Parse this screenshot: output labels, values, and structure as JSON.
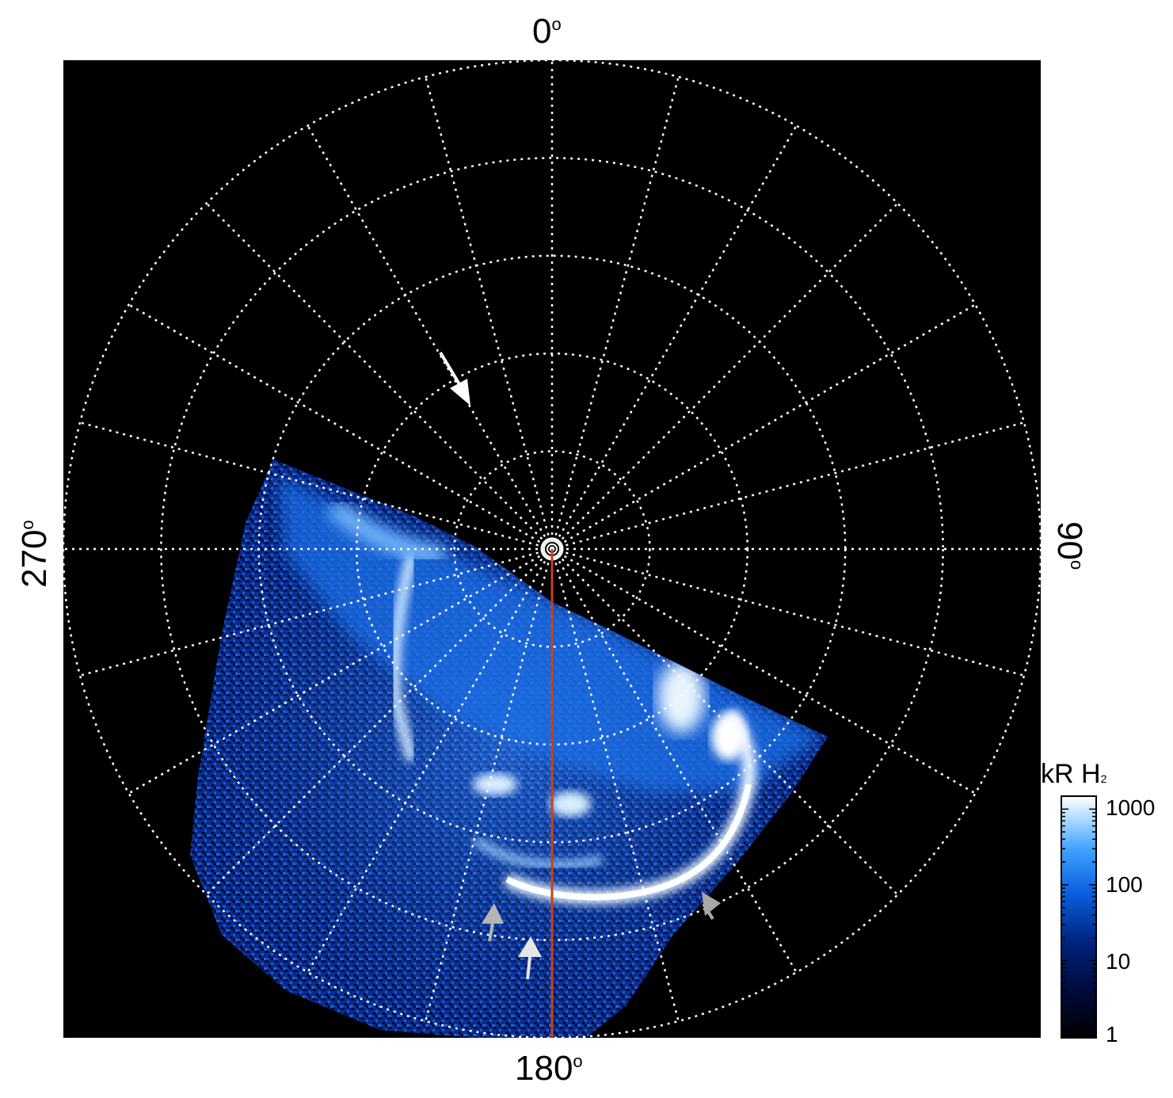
{
  "map": {
    "labels": {
      "top": "0",
      "right": "90",
      "bottom": "180",
      "left": "270",
      "degree_symbol": "o"
    },
    "grid": {
      "style": "dotted",
      "color": "#ffffff",
      "latitude_rings": 5,
      "longitude_spokes": 24
    },
    "meridian_line_color": "#c0401f",
    "background": "#000000",
    "arrows": [
      {
        "color": "#ffffff",
        "name": "white-arrow-upper"
      },
      {
        "color": "#a0a0a0",
        "name": "gray-arrow-right"
      },
      {
        "color": "#b0b0b0",
        "name": "gray-arrow-lower-left"
      },
      {
        "color": "#e0e0e0",
        "name": "white-arrow-lower"
      }
    ]
  },
  "colorbar": {
    "title": "kR H",
    "title_subscript": "2",
    "ticks": [
      "1000",
      "100",
      "10",
      "1"
    ],
    "colors": [
      "#000000",
      "#001a66",
      "#0a4fd0",
      "#3a9cff",
      "#bfe2ff",
      "#ffffff"
    ]
  }
}
